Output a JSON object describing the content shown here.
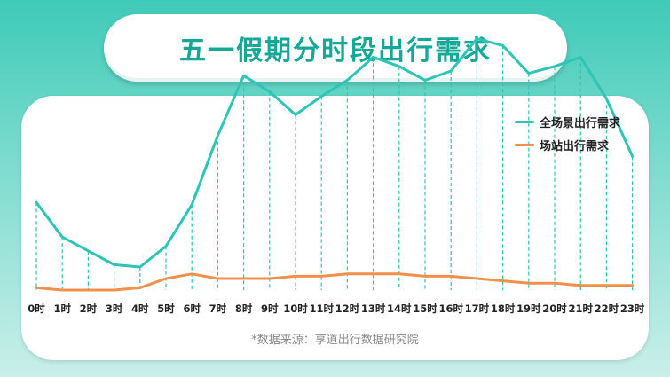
{
  "title": "五一假期分时段出行需求",
  "legend": [
    {
      "label": "全场景出行需求",
      "color": "#2ec4b6"
    },
    {
      "label": "场站出行需求",
      "color": "#f0904a"
    }
  ],
  "source_note": "*数据来源：享道出行数据研究院",
  "chart_data": {
    "type": "line",
    "title": "",
    "xlabel": "",
    "ylabel": "",
    "ylim": [
      0,
      100
    ],
    "grid": false,
    "legend_position": "top-right",
    "categories": [
      "0时",
      "1时",
      "2时",
      "3时",
      "4时",
      "5时",
      "6时",
      "7时",
      "8时",
      "9时",
      "10时",
      "11时",
      "12时",
      "13时",
      "14时",
      "15时",
      "16时",
      "17时",
      "18时",
      "19时",
      "20时",
      "21时",
      "22时",
      "23时"
    ],
    "series": [
      {
        "name": "全场景出行需求",
        "color": "#2ec4b6",
        "values": [
          38,
          23,
          17,
          11,
          10,
          19,
          37,
          67,
          93,
          86,
          76,
          84,
          91,
          101,
          97,
          91,
          95,
          109,
          106,
          94,
          97,
          101,
          83,
          58
        ]
      },
      {
        "name": "场站出行需求",
        "color": "#f0904a",
        "values": [
          1,
          0,
          0,
          0,
          1,
          5,
          7,
          5,
          5,
          5,
          6,
          6,
          7,
          7,
          7,
          6,
          6,
          5,
          4,
          3,
          3,
          2,
          2,
          2
        ]
      }
    ]
  }
}
